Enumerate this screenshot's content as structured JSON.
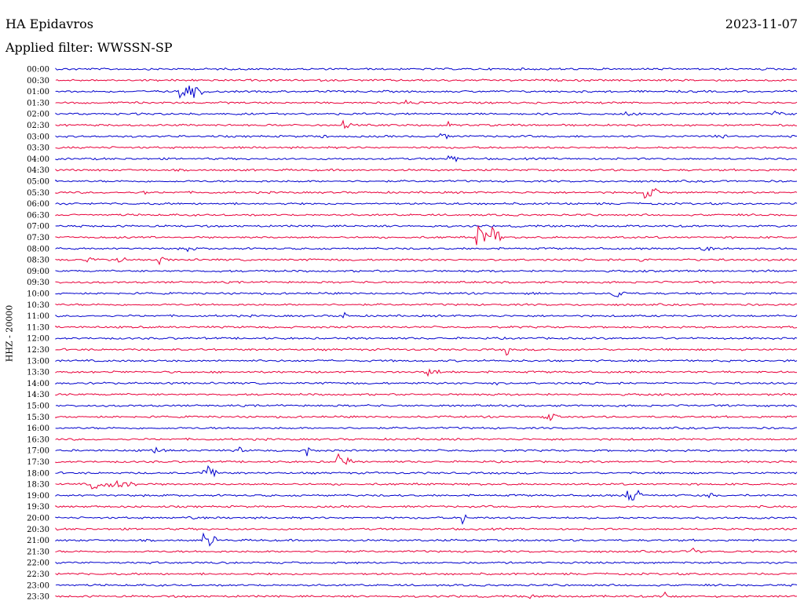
{
  "header": {
    "station": "HA Epidavros",
    "date": "2023-11-07",
    "filter": "Applied filter: WWSSN-SP"
  },
  "chart_data": {
    "type": "line",
    "title": "HA Epidavros",
    "ylabel": "HHZ - 20000",
    "colors": {
      "odd": "#0000cc",
      "even": "#e8003a"
    },
    "row_labels": [
      "00:00",
      "00:30",
      "01:00",
      "01:30",
      "02:00",
      "02:30",
      "03:00",
      "03:30",
      "04:00",
      "04:30",
      "05:00",
      "05:30",
      "06:00",
      "06:30",
      "07:00",
      "07:30",
      "08:00",
      "08:30",
      "09:00",
      "09:30",
      "10:00",
      "10:30",
      "11:00",
      "11:30",
      "12:00",
      "12:30",
      "13:00",
      "13:30",
      "14:00",
      "14:30",
      "15:00",
      "15:30",
      "16:00",
      "16:30",
      "17:00",
      "17:30",
      "18:00",
      "18:30",
      "19:00",
      "19:30",
      "20:00",
      "20:30",
      "21:00",
      "21:30",
      "22:00",
      "22:30",
      "23:00",
      "23:30"
    ],
    "events": [
      {
        "row": 2,
        "at": 0.17,
        "amp": 16,
        "len": 0.03
      },
      {
        "row": 3,
        "at": 0.47,
        "amp": 4,
        "len": 0.03
      },
      {
        "row": 4,
        "at": 0.77,
        "amp": 4,
        "len": 0.02
      },
      {
        "row": 4,
        "at": 0.97,
        "amp": 5,
        "len": 0.01
      },
      {
        "row": 5,
        "at": 0.39,
        "amp": 5,
        "len": 0.01
      },
      {
        "row": 5,
        "at": 0.53,
        "amp": 5,
        "len": 0.01
      },
      {
        "row": 6,
        "at": 0.36,
        "amp": 4,
        "len": 0.01
      },
      {
        "row": 6,
        "at": 0.52,
        "amp": 5,
        "len": 0.01
      },
      {
        "row": 6,
        "at": 0.89,
        "amp": 5,
        "len": 0.02
      },
      {
        "row": 8,
        "at": 0.53,
        "amp": 6,
        "len": 0.015
      },
      {
        "row": 11,
        "at": 0.12,
        "amp": 5,
        "len": 0.01
      },
      {
        "row": 11,
        "at": 0.795,
        "amp": 10,
        "len": 0.02
      },
      {
        "row": 15,
        "at": 0.57,
        "amp": 22,
        "len": 0.03
      },
      {
        "row": 16,
        "at": 0.18,
        "amp": 6,
        "len": 0.01
      },
      {
        "row": 16,
        "at": 0.87,
        "amp": 4,
        "len": 0.03
      },
      {
        "row": 17,
        "at": 0.045,
        "amp": 5,
        "len": 0.01
      },
      {
        "row": 17,
        "at": 0.085,
        "amp": 6,
        "len": 0.01
      },
      {
        "row": 17,
        "at": 0.14,
        "amp": 6,
        "len": 0.01
      },
      {
        "row": 17,
        "at": 0.79,
        "amp": 4,
        "len": 0.01
      },
      {
        "row": 20,
        "at": 0.75,
        "amp": 7,
        "len": 0.02
      },
      {
        "row": 22,
        "at": 0.39,
        "amp": 5,
        "len": 0.005
      },
      {
        "row": 25,
        "at": 0.61,
        "amp": 6,
        "len": 0.005
      },
      {
        "row": 27,
        "at": 0.08,
        "amp": 6,
        "len": 0.005
      },
      {
        "row": 27,
        "at": 0.5,
        "amp": 6,
        "len": 0.02
      },
      {
        "row": 28,
        "at": 0.59,
        "amp": 6,
        "len": 0.01
      },
      {
        "row": 31,
        "at": 0.66,
        "amp": 7,
        "len": 0.02
      },
      {
        "row": 34,
        "at": 0.13,
        "amp": 5,
        "len": 0.02
      },
      {
        "row": 34,
        "at": 0.25,
        "amp": 7,
        "len": 0.005
      },
      {
        "row": 34,
        "at": 0.34,
        "amp": 10,
        "len": 0.005
      },
      {
        "row": 35,
        "at": 0.38,
        "amp": 12,
        "len": 0.02
      },
      {
        "row": 36,
        "at": 0.2,
        "amp": 14,
        "len": 0.02
      },
      {
        "row": 37,
        "at": 0.05,
        "amp": 8,
        "len": 0.06
      },
      {
        "row": 38,
        "at": 0.77,
        "amp": 12,
        "len": 0.02
      },
      {
        "row": 38,
        "at": 0.88,
        "amp": 7,
        "len": 0.005
      },
      {
        "row": 40,
        "at": 0.18,
        "amp": 6,
        "len": 0.01
      },
      {
        "row": 40,
        "at": 0.55,
        "amp": 7,
        "len": 0.005
      },
      {
        "row": 42,
        "at": 0.2,
        "amp": 10,
        "len": 0.02
      },
      {
        "row": 43,
        "at": 0.86,
        "amp": 7,
        "len": 0.01
      },
      {
        "row": 47,
        "at": 0.64,
        "amp": 5,
        "len": 0.005
      },
      {
        "row": 47,
        "at": 0.74,
        "amp": 8,
        "len": 0.005
      },
      {
        "row": 47,
        "at": 0.82,
        "amp": 8,
        "len": 0.005
      }
    ]
  }
}
